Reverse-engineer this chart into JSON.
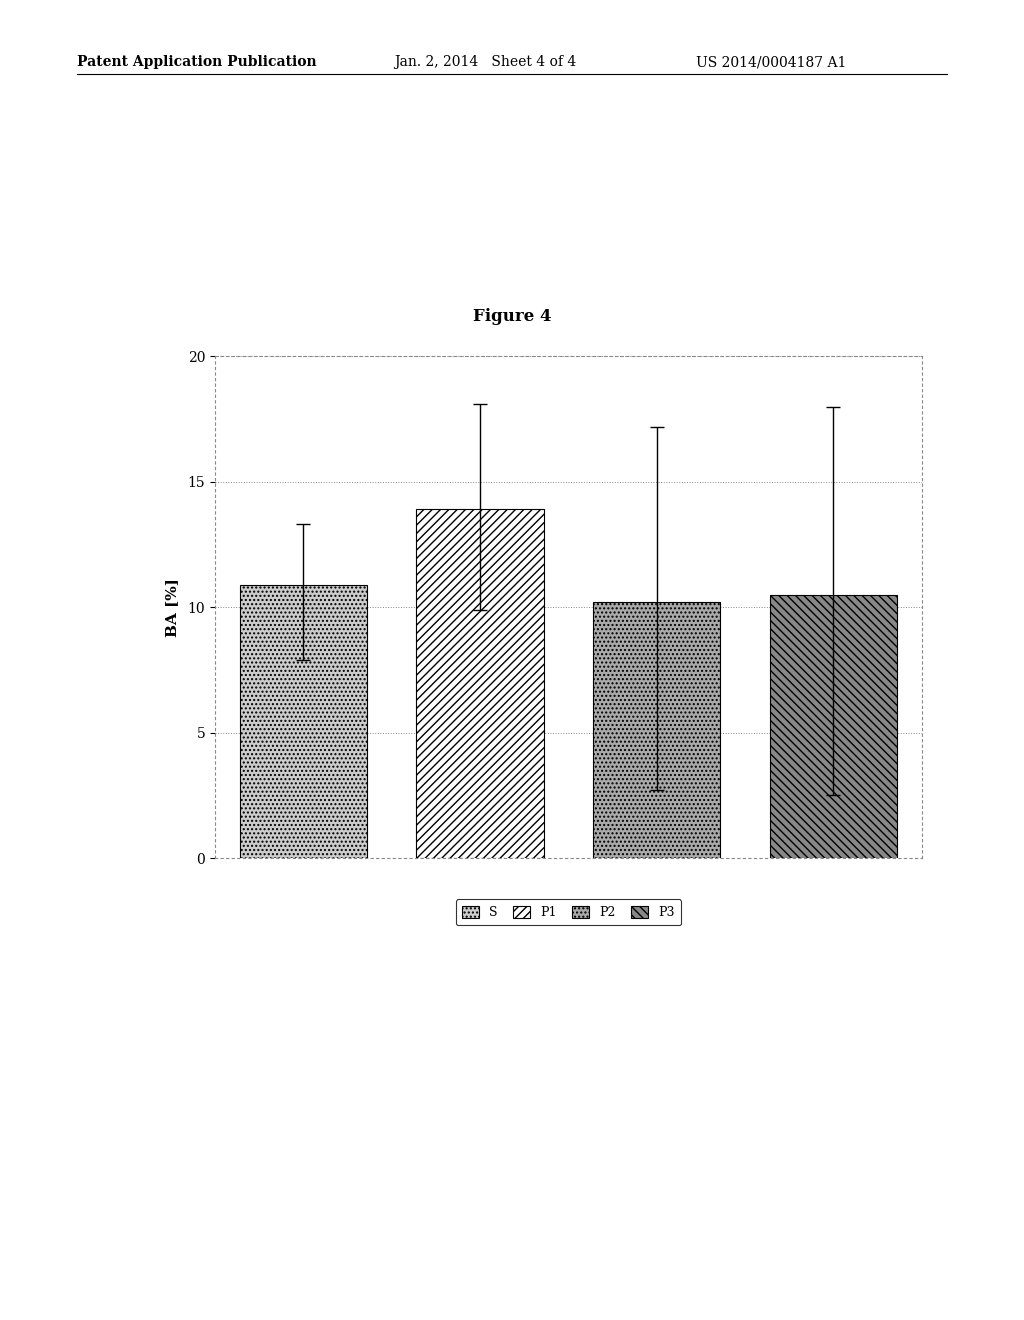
{
  "title": "Figure 4",
  "ylabel": "BA [%]",
  "categories": [
    "S",
    "P1",
    "P2",
    "P3"
  ],
  "values": [
    10.9,
    13.9,
    10.2,
    10.5
  ],
  "errors_upper": [
    2.4,
    4.2,
    7.0,
    7.5
  ],
  "errors_lower": [
    3.0,
    4.0,
    7.5,
    8.0
  ],
  "ylim": [
    0,
    20
  ],
  "yticks": [
    0,
    5,
    10,
    15,
    20
  ],
  "hatches": [
    "....",
    "////",
    "....",
    "\\\\\\\\"
  ],
  "bar_colors": [
    "#cccccc",
    "#ffffff",
    "#aaaaaa",
    "#888888"
  ],
  "bar_edgecolor": "#000000",
  "background_color": "#ffffff",
  "legend_labels": [
    "S",
    "P1",
    "P2",
    "P3"
  ],
  "legend_hatches": [
    "....",
    "////",
    "....",
    "\\\\\\\\"
  ],
  "legend_colors": [
    "#cccccc",
    "#ffffff",
    "#aaaaaa",
    "#888888"
  ],
  "header_left": "Patent Application Publication",
  "header_mid": "Jan. 2, 2014   Sheet 4 of 4",
  "header_right": "US 2014/0004187 A1",
  "title_fontsize": 12,
  "label_fontsize": 11,
  "tick_fontsize": 10,
  "header_fontsize": 10
}
